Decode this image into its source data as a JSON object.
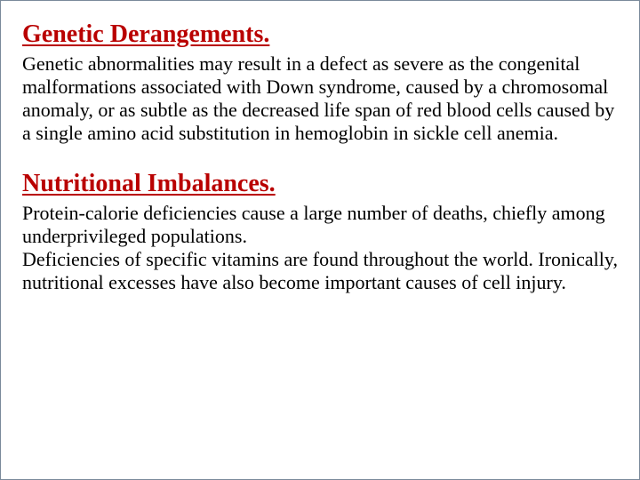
{
  "colors": {
    "heading": "#b90000",
    "body": "#000000",
    "border": "#7a8a9a",
    "background": "#ffffff"
  },
  "typography": {
    "heading_fontsize": 28,
    "heading_weight": "bold",
    "heading_underline": true,
    "body_fontsize": 22,
    "font_family": "Times New Roman"
  },
  "sections": [
    {
      "heading": "Genetic Derangements.",
      "body": "Genetic abnormalities may result in a defect as severe as the congenital malformations associated with Down syndrome, caused by a chromosomal anomaly, or as subtle as the decreased life span of red blood cells caused by a single amino acid substitution in hemoglobin in sickle cell anemia."
    },
    {
      "heading": "Nutritional Imbalances.",
      "body": "Protein-calorie deficiencies cause a large number of deaths, chiefly among underprivileged populations.\nDeficiencies of specific vitamins are found throughout the world. Ironically, nutritional excesses have also become important causes of cell injury."
    }
  ]
}
